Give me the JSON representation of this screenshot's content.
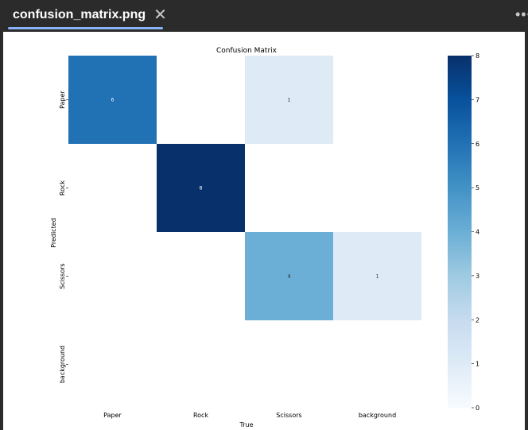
{
  "tab": {
    "title": "confusion_matrix.png",
    "close_icon": "close-icon",
    "more_icon": "more-options-icon"
  },
  "chart_data": {
    "type": "heatmap",
    "title": "Confusion Matrix",
    "xlabel": "True",
    "ylabel": "Predicted",
    "x_categories": [
      "Paper",
      "Rock",
      "Scissors",
      "background"
    ],
    "y_categories": [
      "Paper",
      "Rock",
      "Scissors",
      "background"
    ],
    "values": [
      [
        6,
        null,
        1,
        null
      ],
      [
        null,
        8,
        null,
        null
      ],
      [
        null,
        null,
        4,
        1
      ],
      [
        null,
        null,
        null,
        null
      ]
    ],
    "colorbar": {
      "min": 0,
      "max": 8,
      "ticks": [
        0,
        1,
        2,
        3,
        4,
        5,
        6,
        7,
        8
      ]
    },
    "colormap": "Blues",
    "colors": {
      "low": "#f7fbff",
      "high": "#08306b"
    }
  }
}
